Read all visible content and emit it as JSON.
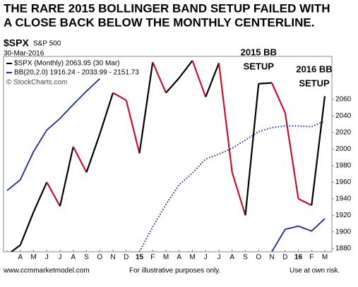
{
  "chart_data": {
    "type": "line",
    "title": [
      "THE RARE 2015 BOLLINGER BAND SETUP FAILED WITH",
      "A CLOSE BACK BELOW THE MONTHLY CENTERLINE."
    ],
    "symbol": "$SPX",
    "symbol_name": "S&P 500",
    "date": "30-Mar-2016",
    "credit": "© StockCharts.com",
    "categories": [
      null,
      "A",
      "M",
      "J",
      "J",
      "A",
      "S",
      "O",
      "N",
      "D",
      "15",
      "F",
      "M",
      "A",
      "M",
      "J",
      "J",
      "A",
      "S",
      "O",
      "N",
      "D",
      "16",
      "F",
      "M"
    ],
    "series": [
      {
        "name": "$SPX (Monthly) 2063.95 (30 Mar)",
        "up_color": "#000000",
        "down_color": "#c8102e",
        "values": [
          1872,
          1884,
          1924,
          1960,
          1931,
          2003,
          1972,
          2018,
          2068,
          2059,
          1995,
          2105,
          2068,
          2086,
          2107,
          2063,
          2104,
          1972,
          1920,
          2079,
          2080,
          2044,
          1940,
          1932,
          2064
        ]
      },
      {
        "name": "BB(20,2.0) 1916.24 - 2033.99 - 2151.73",
        "color": "#1a2a9a",
        "upper": [
          1950,
          1963,
          1997,
          2023,
          2037,
          2054,
          2070,
          2085,
          null,
          null,
          null,
          null,
          null,
          null,
          null,
          null,
          null,
          null,
          null,
          null,
          null,
          null,
          null,
          null,
          null
        ],
        "middle": [
          null,
          null,
          null,
          null,
          null,
          null,
          null,
          null,
          null,
          null,
          1876,
          1906,
          1933,
          1957,
          1971,
          1988,
          1994,
          2001,
          2011,
          2021,
          2026,
          2028,
          2028,
          2027,
          2034
        ],
        "lower": [
          null,
          null,
          null,
          null,
          null,
          null,
          null,
          null,
          null,
          null,
          null,
          null,
          null,
          null,
          null,
          null,
          null,
          null,
          null,
          null,
          1876,
          1903,
          1907,
          1901,
          1916
        ]
      }
    ],
    "ylim": [
      1876,
      2112
    ],
    "yticks": [
      1880,
      1900,
      1920,
      1940,
      1960,
      1980,
      2000,
      2020,
      2040,
      2060
    ],
    "annotations": [
      {
        "lines": [
          "2015 BB",
          "SETUP"
        ],
        "at": 19
      },
      {
        "lines": [
          "2016 BB",
          "SETUP"
        ],
        "at": 24
      }
    ],
    "footer": [
      "www.ccmmarketmodel.com",
      "For illustrative purposes only.",
      "Use at own risk."
    ]
  }
}
